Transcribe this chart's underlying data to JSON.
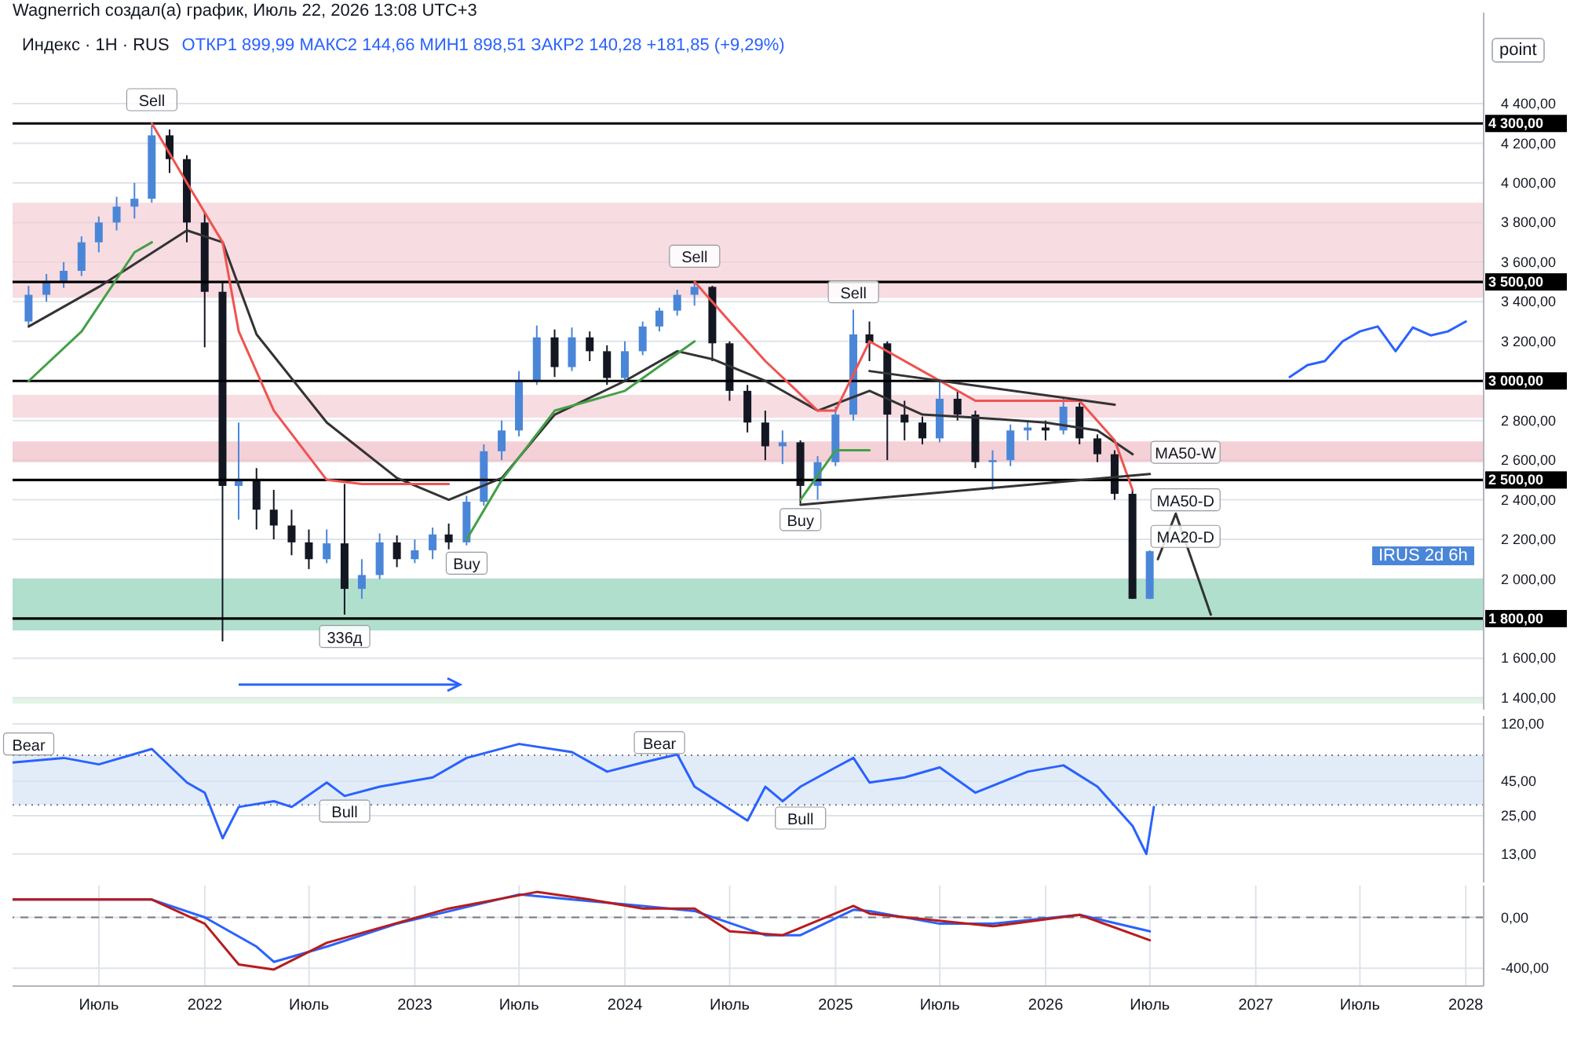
{
  "chart_data": [
    {
      "type": "candlestick",
      "title": "Индекс · 1Н · RUS",
      "subtitle": "ОТКР1 899,99  МАКС2 144,66  МИН1 898,51  ЗАКР2 140,28  +181,85 (+9,29%)",
      "x": [
        "2021-03",
        "2021-04",
        "2021-05",
        "2021-06",
        "2021-07",
        "2021-08",
        "2021-09",
        "2021-10",
        "2021-11",
        "2021-12",
        "2022-01",
        "2022-02",
        "2022-03",
        "2022-04",
        "2022-05",
        "2022-06",
        "2022-07",
        "2022-08",
        "2022-09",
        "2022-10",
        "2022-11",
        "2022-12",
        "2023-01",
        "2023-02",
        "2023-03",
        "2023-04",
        "2023-05",
        "2023-06",
        "2023-07",
        "2023-08",
        "2023-09",
        "2023-10",
        "2023-11",
        "2023-12",
        "2024-01",
        "2024-02",
        "2024-03",
        "2024-04",
        "2024-05",
        "2024-06",
        "2024-07",
        "2024-08",
        "2024-09",
        "2024-10",
        "2024-11",
        "2024-12",
        "2025-01",
        "2025-02",
        "2025-03",
        "2025-04",
        "2025-05",
        "2025-06",
        "2025-07",
        "2025-08",
        "2025-09",
        "2025-10",
        "2025-11",
        "2025-12",
        "2026-01",
        "2026-02",
        "2026-03",
        "2026-04",
        "2026-05",
        "2026-06",
        "2026-07"
      ],
      "ohlc": [
        [
          3300,
          3480,
          3280,
          3435
        ],
        [
          3435,
          3540,
          3400,
          3500
        ],
        [
          3500,
          3600,
          3470,
          3556
        ],
        [
          3556,
          3730,
          3530,
          3700
        ],
        [
          3700,
          3830,
          3650,
          3800
        ],
        [
          3800,
          3930,
          3760,
          3880
        ],
        [
          3880,
          4000,
          3820,
          3920
        ],
        [
          3920,
          4290,
          3900,
          4240
        ],
        [
          4240,
          4270,
          4050,
          4120
        ],
        [
          4120,
          4140,
          3700,
          3800
        ],
        [
          3800,
          3850,
          3170,
          3450
        ],
        [
          3450,
          3500,
          1685,
          2470
        ],
        [
          2470,
          2790,
          2300,
          2500
        ],
        [
          2500,
          2560,
          2250,
          2350
        ],
        [
          2350,
          2450,
          2200,
          2270
        ],
        [
          2270,
          2350,
          2120,
          2185
        ],
        [
          2185,
          2250,
          2050,
          2100
        ],
        [
          2100,
          2250,
          2080,
          2180
        ],
        [
          2180,
          2480,
          1820,
          1950
        ],
        [
          1950,
          2100,
          1900,
          2020
        ],
        [
          2020,
          2230,
          2000,
          2185
        ],
        [
          2185,
          2220,
          2060,
          2100
        ],
        [
          2100,
          2200,
          2080,
          2145
        ],
        [
          2145,
          2260,
          2100,
          2225
        ],
        [
          2225,
          2280,
          2150,
          2185
        ],
        [
          2185,
          2420,
          2170,
          2390
        ],
        [
          2390,
          2680,
          2370,
          2645
        ],
        [
          2645,
          2800,
          2600,
          2750
        ],
        [
          2750,
          3050,
          2720,
          3000
        ],
        [
          3000,
          3280,
          2980,
          3220
        ],
        [
          3220,
          3260,
          3020,
          3070
        ],
        [
          3070,
          3270,
          3050,
          3220
        ],
        [
          3220,
          3250,
          3100,
          3150
        ],
        [
          3150,
          3180,
          2980,
          3015
        ],
        [
          3015,
          3200,
          3000,
          3150
        ],
        [
          3150,
          3300,
          3130,
          3275
        ],
        [
          3275,
          3370,
          3250,
          3355
        ],
        [
          3355,
          3460,
          3330,
          3435
        ],
        [
          3435,
          3500,
          3380,
          3475
        ],
        [
          3475,
          3480,
          3100,
          3190
        ],
        [
          3190,
          3200,
          2900,
          2950
        ],
        [
          2950,
          2980,
          2740,
          2790
        ],
        [
          2790,
          2850,
          2600,
          2670
        ],
        [
          2670,
          2750,
          2580,
          2690
        ],
        [
          2690,
          2700,
          2380,
          2470
        ],
        [
          2470,
          2620,
          2400,
          2590
        ],
        [
          2590,
          2870,
          2570,
          2830
        ],
        [
          2830,
          3360,
          2800,
          3235
        ],
        [
          3235,
          3300,
          3100,
          3190
        ],
        [
          3190,
          3200,
          2600,
          2830
        ],
        [
          2830,
          2900,
          2700,
          2790
        ],
        [
          2790,
          2820,
          2680,
          2710
        ],
        [
          2710,
          3010,
          2690,
          2910
        ],
        [
          2910,
          2950,
          2800,
          2830
        ],
        [
          2830,
          2850,
          2560,
          2590
        ],
        [
          2590,
          2650,
          2450,
          2600
        ],
        [
          2600,
          2780,
          2570,
          2750
        ],
        [
          2750,
          2800,
          2700,
          2765
        ],
        [
          2765,
          2800,
          2700,
          2750
        ],
        [
          2750,
          2910,
          2730,
          2870
        ],
        [
          2870,
          2890,
          2680,
          2710
        ],
        [
          2710,
          2730,
          2590,
          2630
        ],
        [
          2630,
          2650,
          2400,
          2430
        ],
        [
          2430,
          2450,
          1900,
          1900
        ],
        [
          1899.99,
          2144.66,
          1898.51,
          2140.28
        ]
      ],
      "colors": [
        "#4a86d8",
        "#4a86d8",
        "#4a86d8",
        "#4a86d8",
        "#4a86d8",
        "#4a86d8",
        "#4a86d8",
        "#4a86d8",
        "#131722",
        "#131722",
        "#131722",
        "#131722",
        "#4a86d8",
        "#131722",
        "#131722",
        "#131722",
        "#131722",
        "#4a86d8",
        "#131722",
        "#4a86d8",
        "#4a86d8",
        "#131722",
        "#4a86d8",
        "#4a86d8",
        "#131722",
        "#4a86d8",
        "#4a86d8",
        "#4a86d8",
        "#4a86d8",
        "#4a86d8",
        "#131722",
        "#4a86d8",
        "#131722",
        "#131722",
        "#4a86d8",
        "#4a86d8",
        "#4a86d8",
        "#4a86d8",
        "#4a86d8",
        "#131722",
        "#131722",
        "#131722",
        "#131722",
        "#4a86d8",
        "#131722",
        "#4a86d8",
        "#4a86d8",
        "#4a86d8",
        "#131722",
        "#131722",
        "#131722",
        "#131722",
        "#4a86d8",
        "#131722",
        "#131722",
        "#4a86d8",
        "#4a86d8",
        "#4a86d8",
        "#131722",
        "#4a86d8",
        "#131722",
        "#131722",
        "#131722",
        "#131722",
        "#4a86d8"
      ],
      "series": [
        {
          "type": "line",
          "color": "#333333",
          "x": [
            "2021-03",
            "2021-07",
            "2021-12",
            "2022-02",
            "2022-04",
            "2022-08",
            "2022-12",
            "2023-03",
            "2023-06",
            "2023-09",
            "2024-01",
            "2024-04",
            "2024-06",
            "2024-09",
            "2024-12",
            "2025-03",
            "2025-06",
            "2025-09",
            "2026-01",
            "2026-04",
            "2026-06"
          ],
          "values": [
            3275,
            3475,
            3760,
            3700,
            3235,
            2790,
            2510,
            2400,
            2510,
            2830,
            3000,
            3150,
            3110,
            3000,
            2850,
            2950,
            2830,
            2815,
            2790,
            2750,
            2630
          ]
        },
        {
          "type": "line",
          "color": "#ef5350",
          "x": [
            "2021-10",
            "2021-12",
            "2022-02",
            "2022-03",
            "2022-05",
            "2022-08",
            "2022-10",
            "2023-03",
            "2023-04",
            "2024-05",
            "2024-07",
            "2024-09",
            "2024-12",
            "2025-01",
            "2025-03",
            "2025-06",
            "2025-09",
            "2026-03",
            "2026-05",
            "2026-06"
          ],
          "values": [
            4300,
            4000,
            3700,
            3250,
            2850,
            2500,
            2480,
            2480,
            null,
            3500,
            3300,
            3100,
            2850,
            2850,
            3200,
            3050,
            2900,
            2900,
            2700,
            2450
          ]
        },
        {
          "type": "line",
          "color": "#43a047",
          "x": [
            "2021-03",
            "2021-06",
            "2021-09",
            "2021-10",
            "2021-11",
            "2023-04",
            "2023-06",
            "2023-09",
            "2024-01",
            "2024-05",
            "2024-06",
            "2024-11",
            "2025-01",
            "2025-03"
          ],
          "values": [
            3000,
            3250,
            3650,
            3700,
            null,
            2200,
            2500,
            2850,
            2950,
            3200,
            null,
            2400,
            2650,
            2650
          ]
        },
        {
          "type": "line",
          "color": "#333333",
          "x": [
            "2025-03",
            "2026-05"
          ],
          "values": [
            3050,
            2880
          ]
        },
        {
          "type": "line",
          "color": "#333333",
          "x": [
            "2024-11",
            "2026-07"
          ],
          "values": [
            2375,
            2530
          ]
        },
        {
          "type": "line",
          "color": "#333333",
          "x": [
            "2026-07-15",
            "2026-08-15",
            "2026-10-15"
          ],
          "values": [
            2100,
            2330,
            1820
          ]
        },
        {
          "type": "line",
          "color": "#2962ff",
          "x": [
            "2027-03",
            "2027-04",
            "2027-05",
            "2027-06",
            "2027-07",
            "2027-08",
            "2027-09",
            "2027-10",
            "2027-11",
            "2027-12",
            "2028-01"
          ],
          "values": [
            3020,
            3080,
            3100,
            3200,
            3250,
            3275,
            3150,
            3270,
            3230,
            3250,
            3300
          ]
        }
      ],
      "xlim": [
        "2021-02",
        "2028-02"
      ],
      "xticks": [
        {
          "value": "2021-07",
          "label": null
        },
        {
          "value": "2022",
          "label": null
        },
        {
          "value": "2022-07",
          "label": null
        },
        {
          "value": "2023",
          "label": null
        },
        {
          "value": "2023-07",
          "label": null
        },
        {
          "value": "2024",
          "label": null
        },
        {
          "value": "2024-07",
          "label": null
        },
        {
          "value": "2025",
          "label": null
        },
        {
          "value": "2025-07",
          "label": null
        },
        {
          "value": "2026",
          "label": null
        },
        {
          "value": "2026-07",
          "label": null
        },
        {
          "value": "2027",
          "label": null
        },
        {
          "value": "2027-07",
          "label": null
        },
        {
          "value": "2028",
          "label": null
        }
      ],
      "ylim": [
        1340,
        4860
      ],
      "yticks": [
        {
          "value": 1400,
          "label": "1 400,00"
        },
        {
          "value": 1600,
          "label": "1 600,00"
        },
        {
          "value": 2000,
          "label": "2 000,00"
        },
        {
          "value": 2200,
          "label": "2 200,00"
        },
        {
          "value": 2400,
          "label": "2 400,00"
        },
        {
          "value": 2600,
          "label": "2 600,00"
        },
        {
          "value": 2800,
          "label": "2 800,00"
        },
        {
          "value": 3200,
          "label": "3 200,00"
        },
        {
          "value": 3400,
          "label": "3 400,00"
        },
        {
          "value": 3600,
          "label": "3 600,00"
        },
        {
          "value": 3800,
          "label": "3 800,00"
        },
        {
          "value": 4000,
          "label": "4 000,00"
        },
        {
          "value": 4200,
          "label": "4 200,00"
        },
        {
          "value": 4400,
          "label": "4 400,00"
        }
      ],
      "ref_lines": [
        {
          "axis": "y",
          "value": 4300,
          "label": "4 300,00",
          "color": "#000000"
        },
        {
          "axis": "y",
          "value": 3500,
          "label": "3 500,00",
          "color": "#000000"
        },
        {
          "axis": "y",
          "value": 3000,
          "label": "3 000,00",
          "color": "#000000"
        },
        {
          "axis": "y",
          "value": 2500,
          "label": "2 500,00",
          "color": "#000000"
        },
        {
          "axis": "y",
          "value": 1800,
          "label": "1 800,00",
          "color": "#000000"
        }
      ],
      "bands": [
        {
          "axis": "y",
          "from": 3420,
          "to": 3900,
          "color": "#f4cdd4"
        },
        {
          "axis": "y",
          "from": 2815,
          "to": 2930,
          "color": "#f4cdd4"
        },
        {
          "axis": "y",
          "from": 2590,
          "to": 2695,
          "color": "#f0bcc6"
        },
        {
          "axis": "y",
          "from": 1740,
          "to": 2000,
          "color": "#8fd3b8"
        },
        {
          "axis": "y",
          "from": 1370,
          "to": 1400,
          "color": "#d6efdc"
        }
      ],
      "annotations": [
        "Wagnerrich создал(а) график, Июль 22, 2026 13:08 UTC+3",
        "IRUS 2d 6h",
        "point",
        {
          "text": "Sell",
          "x": "2021-10",
          "y": 4420
        },
        {
          "text": "Sell",
          "x": "2024-05",
          "y": 3630
        },
        {
          "text": "Sell",
          "x": "2025-02",
          "y": 3450
        },
        {
          "text": "Buy",
          "x": "2023-04",
          "y": 2080
        },
        {
          "text": "Buy",
          "x": "2024-11",
          "y": 2300
        },
        {
          "text": "336д",
          "x": "2022-09",
          "y": 1710
        },
        {
          "text": "MA50-W",
          "x": "2026-09",
          "y": 2640
        },
        {
          "text": "MA50-D",
          "x": "2026-09",
          "y": 2400
        },
        {
          "text": "MA20-D",
          "x": "2026-09",
          "y": 2215
        }
      ],
      "grid": true,
      "tick_labels": "y",
      "marker": "none",
      "line_style": "solid"
    },
    {
      "type": "line",
      "series": [
        {
          "color": "#2962ff",
          "x": [
            "2021-02",
            "2021-05",
            "2021-07",
            "2021-10",
            "2021-12",
            "2022-01",
            "2022-02",
            "2022-03",
            "2022-05",
            "2022-06",
            "2022-08",
            "2022-09",
            "2022-11",
            "2023-02",
            "2023-04",
            "2023-07",
            "2023-10",
            "2023-12",
            "2024-02",
            "2024-04",
            "2024-05",
            "2024-08",
            "2024-09",
            "2024-10",
            "2024-11",
            "2025-01",
            "2025-02",
            "2025-03",
            "2025-05",
            "2025-07",
            "2025-09",
            "2025-12",
            "2026-02",
            "2026-04",
            "2026-06-01",
            "2026-06-25",
            "2026-07-08"
          ],
          "values": [
            62,
            67,
            60,
            78,
            44,
            37,
            17,
            29,
            32,
            29,
            44,
            35,
            41,
            48,
            67,
            85,
            74,
            53,
            62,
            71,
            41,
            23,
            41,
            32,
            41,
            57,
            67,
            44,
            48,
            57,
            37,
            53,
            59,
            41,
            21,
            13,
            29
          ]
        }
      ],
      "xlim": [
        "2021-02",
        "2028-02"
      ],
      "xticks": [
        {
          "value": "2021-07",
          "label": null
        },
        {
          "value": "2022",
          "label": null
        },
        {
          "value": "2022-07",
          "label": null
        },
        {
          "value": "2023",
          "label": null
        },
        {
          "value": "2023-07",
          "label": null
        },
        {
          "value": "2024",
          "label": null
        },
        {
          "value": "2024-07",
          "label": null
        },
        {
          "value": "2025",
          "label": null
        },
        {
          "value": "2025-07",
          "label": null
        },
        {
          "value": "2026",
          "label": null
        },
        {
          "value": "2026-07",
          "label": null
        },
        {
          "value": "2027",
          "label": null
        },
        {
          "value": "2027-07",
          "label": null
        },
        {
          "value": "2028",
          "label": null
        }
      ],
      "ylim": [
        8,
        137
      ],
      "log": true,
      "yticks": [
        {
          "value": 120,
          "label": "120,00"
        },
        {
          "value": 45,
          "label": "45,00"
        },
        {
          "value": 25,
          "label": "25,00"
        },
        {
          "value": 13,
          "label": "13,00"
        }
      ],
      "ref_lines": [
        {
          "axis": "y",
          "value": 70,
          "line_style": "dotted",
          "color": "#787b86"
        },
        {
          "axis": "y",
          "value": 30,
          "line_style": "dotted",
          "color": "#787b86"
        }
      ],
      "bands": [
        {
          "axis": "y",
          "from": 30,
          "to": 70,
          "color": "#d6e4f7"
        }
      ],
      "annotations": [
        {
          "text": "Bear",
          "x": "2021-03",
          "y": 85
        },
        {
          "text": "Bear",
          "x": "2024-03",
          "y": 87
        },
        {
          "text": "Bull",
          "x": "2022-09",
          "y": 27
        },
        {
          "text": "Bull",
          "x": "2024-11",
          "y": 24
        }
      ],
      "grid": true,
      "tick_labels": "y",
      "marker": "none",
      "line_style": "solid"
    },
    {
      "type": "line",
      "series": [
        {
          "color": "#2962ff",
          "x": [
            "2021-02",
            "2021-10",
            "2022-01",
            "2022-04",
            "2022-05",
            "2022-08",
            "2022-12",
            "2023-07",
            "2023-10",
            "2024-02",
            "2024-05",
            "2024-09",
            "2024-11",
            "2025-02",
            "2025-03",
            "2025-07",
            "2025-10",
            "2026-03",
            "2026-07"
          ],
          "values": [
            140,
            140,
            0,
            -230,
            -350,
            -230,
            -50,
            180,
            140,
            90,
            50,
            -140,
            -140,
            60,
            50,
            -50,
            -50,
            20,
            -110
          ]
        },
        {
          "color": "#b71c1c",
          "x": [
            "2021-02",
            "2021-10",
            "2022-01",
            "2022-03",
            "2022-05",
            "2022-08",
            "2023-03",
            "2023-08",
            "2023-11",
            "2024-02",
            "2024-05",
            "2024-07",
            "2024-10",
            "2025-02",
            "2025-03",
            "2025-10",
            "2026-03",
            "2026-07"
          ],
          "values": [
            140,
            140,
            -50,
            -370,
            -410,
            -200,
            70,
            200,
            140,
            70,
            70,
            -110,
            -140,
            90,
            30,
            -70,
            20,
            -180
          ]
        }
      ],
      "xlim": [
        "2021-02",
        "2028-02"
      ],
      "xticks": [
        {
          "value": "2021-07",
          "label": "Июль"
        },
        {
          "value": "2022",
          "label": "2022"
        },
        {
          "value": "2022-07",
          "label": "Июль"
        },
        {
          "value": "2023",
          "label": "2023"
        },
        {
          "value": "2023-07",
          "label": "Июль"
        },
        {
          "value": "2024",
          "label": "2024"
        },
        {
          "value": "2024-07",
          "label": "Июль"
        },
        {
          "value": "2025",
          "label": "2025"
        },
        {
          "value": "2025-07",
          "label": "Июль"
        },
        {
          "value": "2026",
          "label": "2026"
        },
        {
          "value": "2026-07",
          "label": "Июль"
        },
        {
          "value": "2027",
          "label": "2027"
        },
        {
          "value": "2027-07",
          "label": "Июль"
        },
        {
          "value": "2028",
          "label": "2028"
        }
      ],
      "ylim": [
        -540,
        250
      ],
      "yticks": [
        {
          "value": 0,
          "label": "0,00"
        },
        {
          "value": -400,
          "label": "-400,00"
        }
      ],
      "ref_lines": [
        {
          "axis": "y",
          "value": 0,
          "line_style": "dashed",
          "color": "#787b86"
        }
      ],
      "grid": true,
      "marker": "none",
      "line_style": "solid"
    }
  ]
}
